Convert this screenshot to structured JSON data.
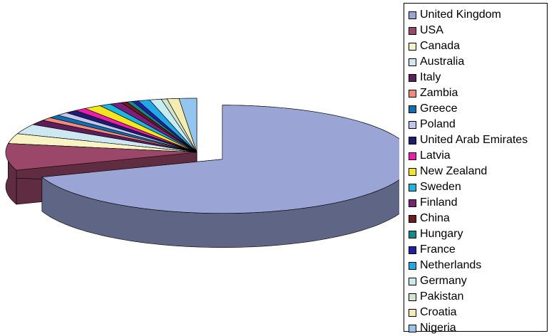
{
  "chart_data": {
    "type": "pie",
    "style": "3d-exploded",
    "legend_position": "right",
    "categories": [
      "United Kingdom",
      "USA",
      "Canada",
      "Australia",
      "Italy",
      "Zambia",
      "Greece",
      "Poland",
      "United Arab Emirates",
      "Latvia",
      "New Zealand",
      "Sweden",
      "Finland",
      "China",
      "Hungary",
      "France",
      "Netherlands",
      "Germany",
      "Pakistan",
      "Croatia",
      "Nigeria"
    ],
    "values": [
      70.0,
      8.0,
      3.0,
      3.0,
      1.5,
      1.0,
      1.0,
      1.0,
      1.0,
      1.0,
      1.5,
      1.0,
      1.0,
      0.5,
      0.5,
      0.5,
      1.0,
      1.0,
      0.5,
      1.0,
      1.5
    ],
    "colors": [
      "#9aa5d6",
      "#9a4769",
      "#f7f3c4",
      "#cde8f2",
      "#5c1f5c",
      "#f2897c",
      "#0e6fb3",
      "#c1c6ef",
      "#1c1c72",
      "#ef1ab0",
      "#f5e51f",
      "#1bb5e2",
      "#7a1f7a",
      "#701a1a",
      "#0e8c8c",
      "#1f1fa8",
      "#1fa9e8",
      "#c6ecf2",
      "#cfe5cc",
      "#f5edb0",
      "#93c6ee"
    ]
  }
}
